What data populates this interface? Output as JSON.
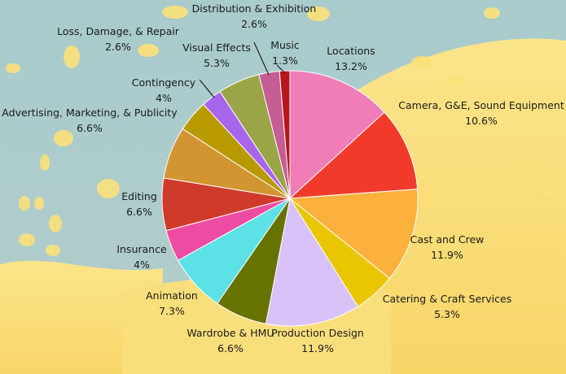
{
  "chart_data": {
    "type": "pie",
    "title": "",
    "start_angle_deg": 0,
    "direction": "clockwise",
    "slices": [
      {
        "label": "Locations",
        "value": 13.2,
        "display": "13.2%",
        "color": "#f07db7"
      },
      {
        "label": "Camera, G&E, Sound Equipment",
        "value": 10.6,
        "display": "10.6%",
        "color": "#f23a2a"
      },
      {
        "label": "Cast and Crew",
        "value": 11.9,
        "display": "11.9%",
        "color": "#fbb13c"
      },
      {
        "label": "Catering & Craft Services",
        "value": 5.3,
        "display": "5.3%",
        "color": "#e9c600"
      },
      {
        "label": "Production Design",
        "value": 11.9,
        "display": "11.9%",
        "color": "#d9c2f7"
      },
      {
        "label": "Wardrobe & HMU",
        "value": 6.6,
        "display": "6.6%",
        "color": "#667300"
      },
      {
        "label": "Animation",
        "value": 7.3,
        "display": "7.3%",
        "color": "#5ce1e6"
      },
      {
        "label": "Insurance",
        "value": 4,
        "display": "4%",
        "color": "#ee4ba3"
      },
      {
        "label": "Editing",
        "value": 6.6,
        "display": "6.6%",
        "color": "#cf3a2b"
      },
      {
        "label": "Advertising, Marketing, & Publicity",
        "value": 6.6,
        "display": "6.6%",
        "color": "#d29532"
      },
      {
        "label": "Contingency",
        "value": 4,
        "display": "4%",
        "color": "#b89a00"
      },
      {
        "label": "Loss, Damage, & Repair",
        "value": 2.6,
        "display": "2.6%",
        "color": "#a866ec"
      },
      {
        "label": "Visual Effects",
        "value": 5.3,
        "display": "5.3%",
        "color": "#9aa547"
      },
      {
        "label": "Distribution & Exhibition",
        "value": 2.6,
        "display": "2.6%",
        "color": "#c45e94"
      },
      {
        "label": "Music",
        "value": 1.3,
        "display": "1.3%",
        "color": "#b8161a"
      }
    ]
  }
}
